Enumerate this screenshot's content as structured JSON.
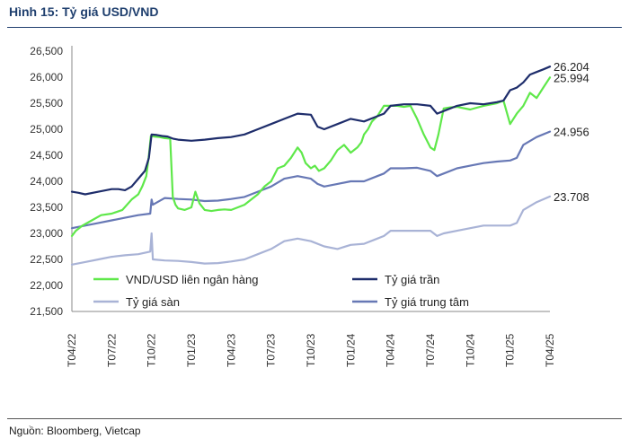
{
  "figure": {
    "title": "Hình 15: Tỷ giá USD/VND",
    "source": "Nguồn: Bloomberg, Vietcap"
  },
  "chart_data": {
    "type": "line",
    "title": "Hình 15: Tỷ giá USD/VND",
    "xlabel": "",
    "ylabel": "",
    "ylim": [
      21500,
      26500
    ],
    "yticks": [
      "21,500",
      "22,000",
      "22,500",
      "23,000",
      "23,500",
      "24,000",
      "24,500",
      "25,000",
      "25,500",
      "26,000",
      "26,500"
    ],
    "xlim": [
      0,
      36
    ],
    "xticks": [
      {
        "pos": 0,
        "label": "T04/22"
      },
      {
        "pos": 3,
        "label": "T07/22"
      },
      {
        "pos": 6,
        "label": "T10/22"
      },
      {
        "pos": 9,
        "label": "T01/23"
      },
      {
        "pos": 12,
        "label": "T04/23"
      },
      {
        "pos": 15,
        "label": "T07/23"
      },
      {
        "pos": 18,
        "label": "T10/23"
      },
      {
        "pos": 21,
        "label": "T01/24"
      },
      {
        "pos": 24,
        "label": "T04/24"
      },
      {
        "pos": 27,
        "label": "T07/24"
      },
      {
        "pos": 30,
        "label": "T10/24"
      },
      {
        "pos": 33,
        "label": "T01/25"
      },
      {
        "pos": 36,
        "label": "T04/25"
      }
    ],
    "series": [
      {
        "name": "VND/USD liên ngân hàng",
        "color": "#5fe84a",
        "legend_order": 0,
        "end_label": "25.994",
        "x": [
          0,
          0.3,
          0.8,
          1.5,
          2.2,
          3,
          3.8,
          4.5,
          5,
          5.3,
          5.6,
          5.8,
          5.95,
          6.2,
          6.6,
          7,
          7.4,
          7.6,
          7.8,
          8,
          8.5,
          9,
          9.3,
          9.6,
          10,
          10.5,
          11,
          11.5,
          12,
          13,
          14,
          14.5,
          15,
          15.5,
          16,
          16.5,
          17,
          17.3,
          17.6,
          18,
          18.3,
          18.6,
          19,
          19.5,
          20,
          20.5,
          21,
          21.5,
          21.8,
          22,
          22.3,
          22.6,
          23,
          23.5,
          24,
          24.5,
          25,
          25.5,
          26,
          26.5,
          27,
          27.3,
          27.6,
          28,
          28.5,
          29,
          30,
          31,
          32,
          32.5,
          33,
          33.5,
          34,
          34.5,
          35,
          35.5,
          36
        ],
        "y": [
          22950,
          23050,
          23150,
          23250,
          23350,
          23380,
          23450,
          23650,
          23750,
          23900,
          24100,
          24500,
          24870,
          24860,
          24850,
          24830,
          24820,
          23700,
          23550,
          23480,
          23450,
          23500,
          23800,
          23580,
          23450,
          23430,
          23450,
          23460,
          23450,
          23550,
          23750,
          23900,
          24000,
          24250,
          24300,
          24450,
          24650,
          24550,
          24350,
          24250,
          24300,
          24200,
          24250,
          24400,
          24600,
          24700,
          24550,
          24650,
          24750,
          24900,
          25000,
          25150,
          25250,
          25450,
          25450,
          25450,
          25430,
          25450,
          25200,
          24900,
          24650,
          24600,
          24900,
          25400,
          25420,
          25430,
          25380,
          25450,
          25500,
          25550,
          25100,
          25300,
          25450,
          25700,
          25600,
          25800,
          25994
        ]
      },
      {
        "name": "Tỷ giá trần",
        "color": "#1e2d6b",
        "legend_order": 1,
        "end_label": "26.204",
        "x": [
          0,
          0.5,
          1,
          2,
          3,
          3.5,
          4,
          4.5,
          5,
          5.5,
          5.8,
          6,
          6.4,
          6.8,
          7.2,
          7.6,
          8,
          9,
          10,
          11,
          12,
          13,
          14,
          15,
          16,
          17,
          18,
          18.5,
          19,
          20,
          21,
          22,
          23,
          23.5,
          24,
          25,
          26,
          27,
          27.5,
          28,
          29,
          30,
          31,
          32,
          32.5,
          33,
          33.5,
          34,
          34.5,
          35,
          35.5,
          36
        ],
        "y": [
          23800,
          23780,
          23750,
          23800,
          23850,
          23850,
          23830,
          23900,
          24050,
          24200,
          24450,
          24900,
          24890,
          24870,
          24860,
          24820,
          24800,
          24780,
          24800,
          24830,
          24850,
          24900,
          25000,
          25100,
          25200,
          25300,
          25280,
          25050,
          25000,
          25100,
          25200,
          25150,
          25250,
          25300,
          25450,
          25480,
          25480,
          25450,
          25300,
          25350,
          25450,
          25500,
          25480,
          25520,
          25550,
          25750,
          25800,
          25900,
          26050,
          26100,
          26150,
          26204
        ]
      },
      {
        "name": "Tỷ giá sàn",
        "color": "#a9b3d6",
        "legend_order": 2,
        "end_label": "23.708",
        "x": [
          0,
          1,
          2,
          3,
          4,
          5,
          5.9,
          6,
          6.1,
          7,
          8,
          9,
          10,
          11,
          12,
          13,
          14,
          15,
          16,
          17,
          18,
          19,
          20,
          21,
          22,
          23,
          23.5,
          24,
          25,
          26,
          27,
          27.5,
          28,
          29,
          30,
          31,
          32,
          33,
          33.5,
          34,
          35,
          36
        ],
        "y": [
          22400,
          22450,
          22500,
          22550,
          22580,
          22600,
          22650,
          23000,
          22500,
          22480,
          22470,
          22450,
          22420,
          22430,
          22460,
          22500,
          22600,
          22700,
          22850,
          22900,
          22850,
          22750,
          22700,
          22780,
          22800,
          22900,
          22950,
          23050,
          23050,
          23050,
          23050,
          22950,
          23000,
          23050,
          23100,
          23150,
          23150,
          23150,
          23200,
          23450,
          23600,
          23708
        ]
      },
      {
        "name": "Tỷ giá trung tâm",
        "color": "#6778b5",
        "legend_order": 3,
        "end_label": "24.956",
        "x": [
          0,
          1,
          2,
          3,
          4,
          5,
          5.9,
          6,
          6.1,
          7,
          8,
          9,
          10,
          11,
          12,
          13,
          14,
          15,
          16,
          17,
          18,
          18.5,
          19,
          20,
          21,
          22,
          23,
          23.5,
          24,
          25,
          26,
          27,
          27.5,
          28,
          29,
          30,
          31,
          32,
          33,
          33.5,
          34,
          35,
          36
        ],
        "y": [
          23100,
          23150,
          23200,
          23250,
          23300,
          23350,
          23380,
          23650,
          23550,
          23680,
          23660,
          23650,
          23620,
          23630,
          23660,
          23700,
          23800,
          23900,
          24050,
          24100,
          24050,
          23950,
          23900,
          23950,
          24000,
          24000,
          24100,
          24150,
          24250,
          24250,
          24260,
          24200,
          24100,
          24150,
          24250,
          24300,
          24350,
          24380,
          24400,
          24450,
          24700,
          24850,
          24956
        ]
      }
    ]
  }
}
